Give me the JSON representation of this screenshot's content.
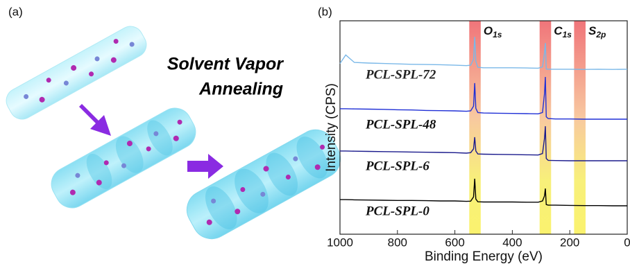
{
  "panel_a": {
    "label": "(a)",
    "title_lines": [
      "Solvent Vapor",
      "Annealing"
    ]
  },
  "chart_data": {
    "type": "line",
    "panel_label": "(b)",
    "xlabel": "Binding Energy (eV)",
    "ylabel": "Intensity (CPS)",
    "xlim": [
      1000,
      0
    ],
    "xticks": [
      1000,
      800,
      600,
      400,
      200,
      0
    ],
    "ylim": [
      0,
      100
    ],
    "x": [
      1000,
      980,
      950,
      900,
      850,
      800,
      750,
      700,
      650,
      600,
      560,
      545,
      535,
      531,
      527,
      520,
      500,
      450,
      400,
      350,
      310,
      295,
      288,
      285,
      282,
      275,
      250,
      200,
      150,
      100,
      50,
      0
    ],
    "peak_labels": [
      {
        "main": "O",
        "sub": "1s",
        "range": [
          550,
          510
        ]
      },
      {
        "main": "C",
        "sub": "1s",
        "range": [
          305,
          265
        ]
      },
      {
        "main": "S",
        "sub": "2p",
        "range": [
          185,
          145
        ]
      }
    ],
    "series": [
      {
        "name": "PCL-SPL-72",
        "color": "#7ab8e8",
        "values": [
          80,
          84,
          80.5,
          80.2,
          80,
          79.8,
          79.6,
          79.5,
          79.4,
          79.2,
          79,
          79.2,
          82,
          92.5,
          81,
          78.2,
          78,
          78,
          78,
          77.9,
          77.8,
          78.4,
          85,
          89.6,
          77.4,
          77.3,
          77.3,
          77.3,
          77.2,
          77.3,
          77.2,
          77.3
        ]
      },
      {
        "name": "PCL-SPL-48",
        "color": "#1f2fd6",
        "values": [
          58.8,
          58.8,
          58.7,
          58.6,
          58.5,
          58.3,
          58.2,
          58,
          57.9,
          57.8,
          57.6,
          57.8,
          60,
          70.8,
          59,
          57,
          56.8,
          56.7,
          56.6,
          56.5,
          56.4,
          57,
          66,
          73.7,
          55,
          54.2,
          54,
          54,
          53.9,
          53.9,
          53.9,
          53.9
        ]
      },
      {
        "name": "PCL-SPL-6",
        "color": "#1a1a8c",
        "values": [
          39,
          39,
          38.9,
          38.8,
          38.7,
          38.6,
          38.5,
          38.4,
          38.3,
          38.2,
          38,
          38.2,
          40,
          45.5,
          39,
          37.6,
          37.5,
          37.4,
          37.3,
          37.2,
          37.1,
          37.8,
          45,
          50.6,
          35.5,
          34.6,
          34.5,
          34.4,
          34.4,
          34.4,
          34.4,
          34.4
        ]
      },
      {
        "name": "PCL-SPL-0",
        "color": "#000000",
        "values": [
          16.2,
          16.2,
          16.1,
          16,
          15.9,
          15.8,
          15.8,
          15.7,
          15.6,
          15.6,
          15.4,
          15.5,
          17.5,
          26,
          16.5,
          15.2,
          15.1,
          15.1,
          15.1,
          15,
          15,
          15.6,
          18,
          21.4,
          13.9,
          13.6,
          13.6,
          13.5,
          13.4,
          13.4,
          13.3,
          13.3
        ]
      }
    ]
  }
}
